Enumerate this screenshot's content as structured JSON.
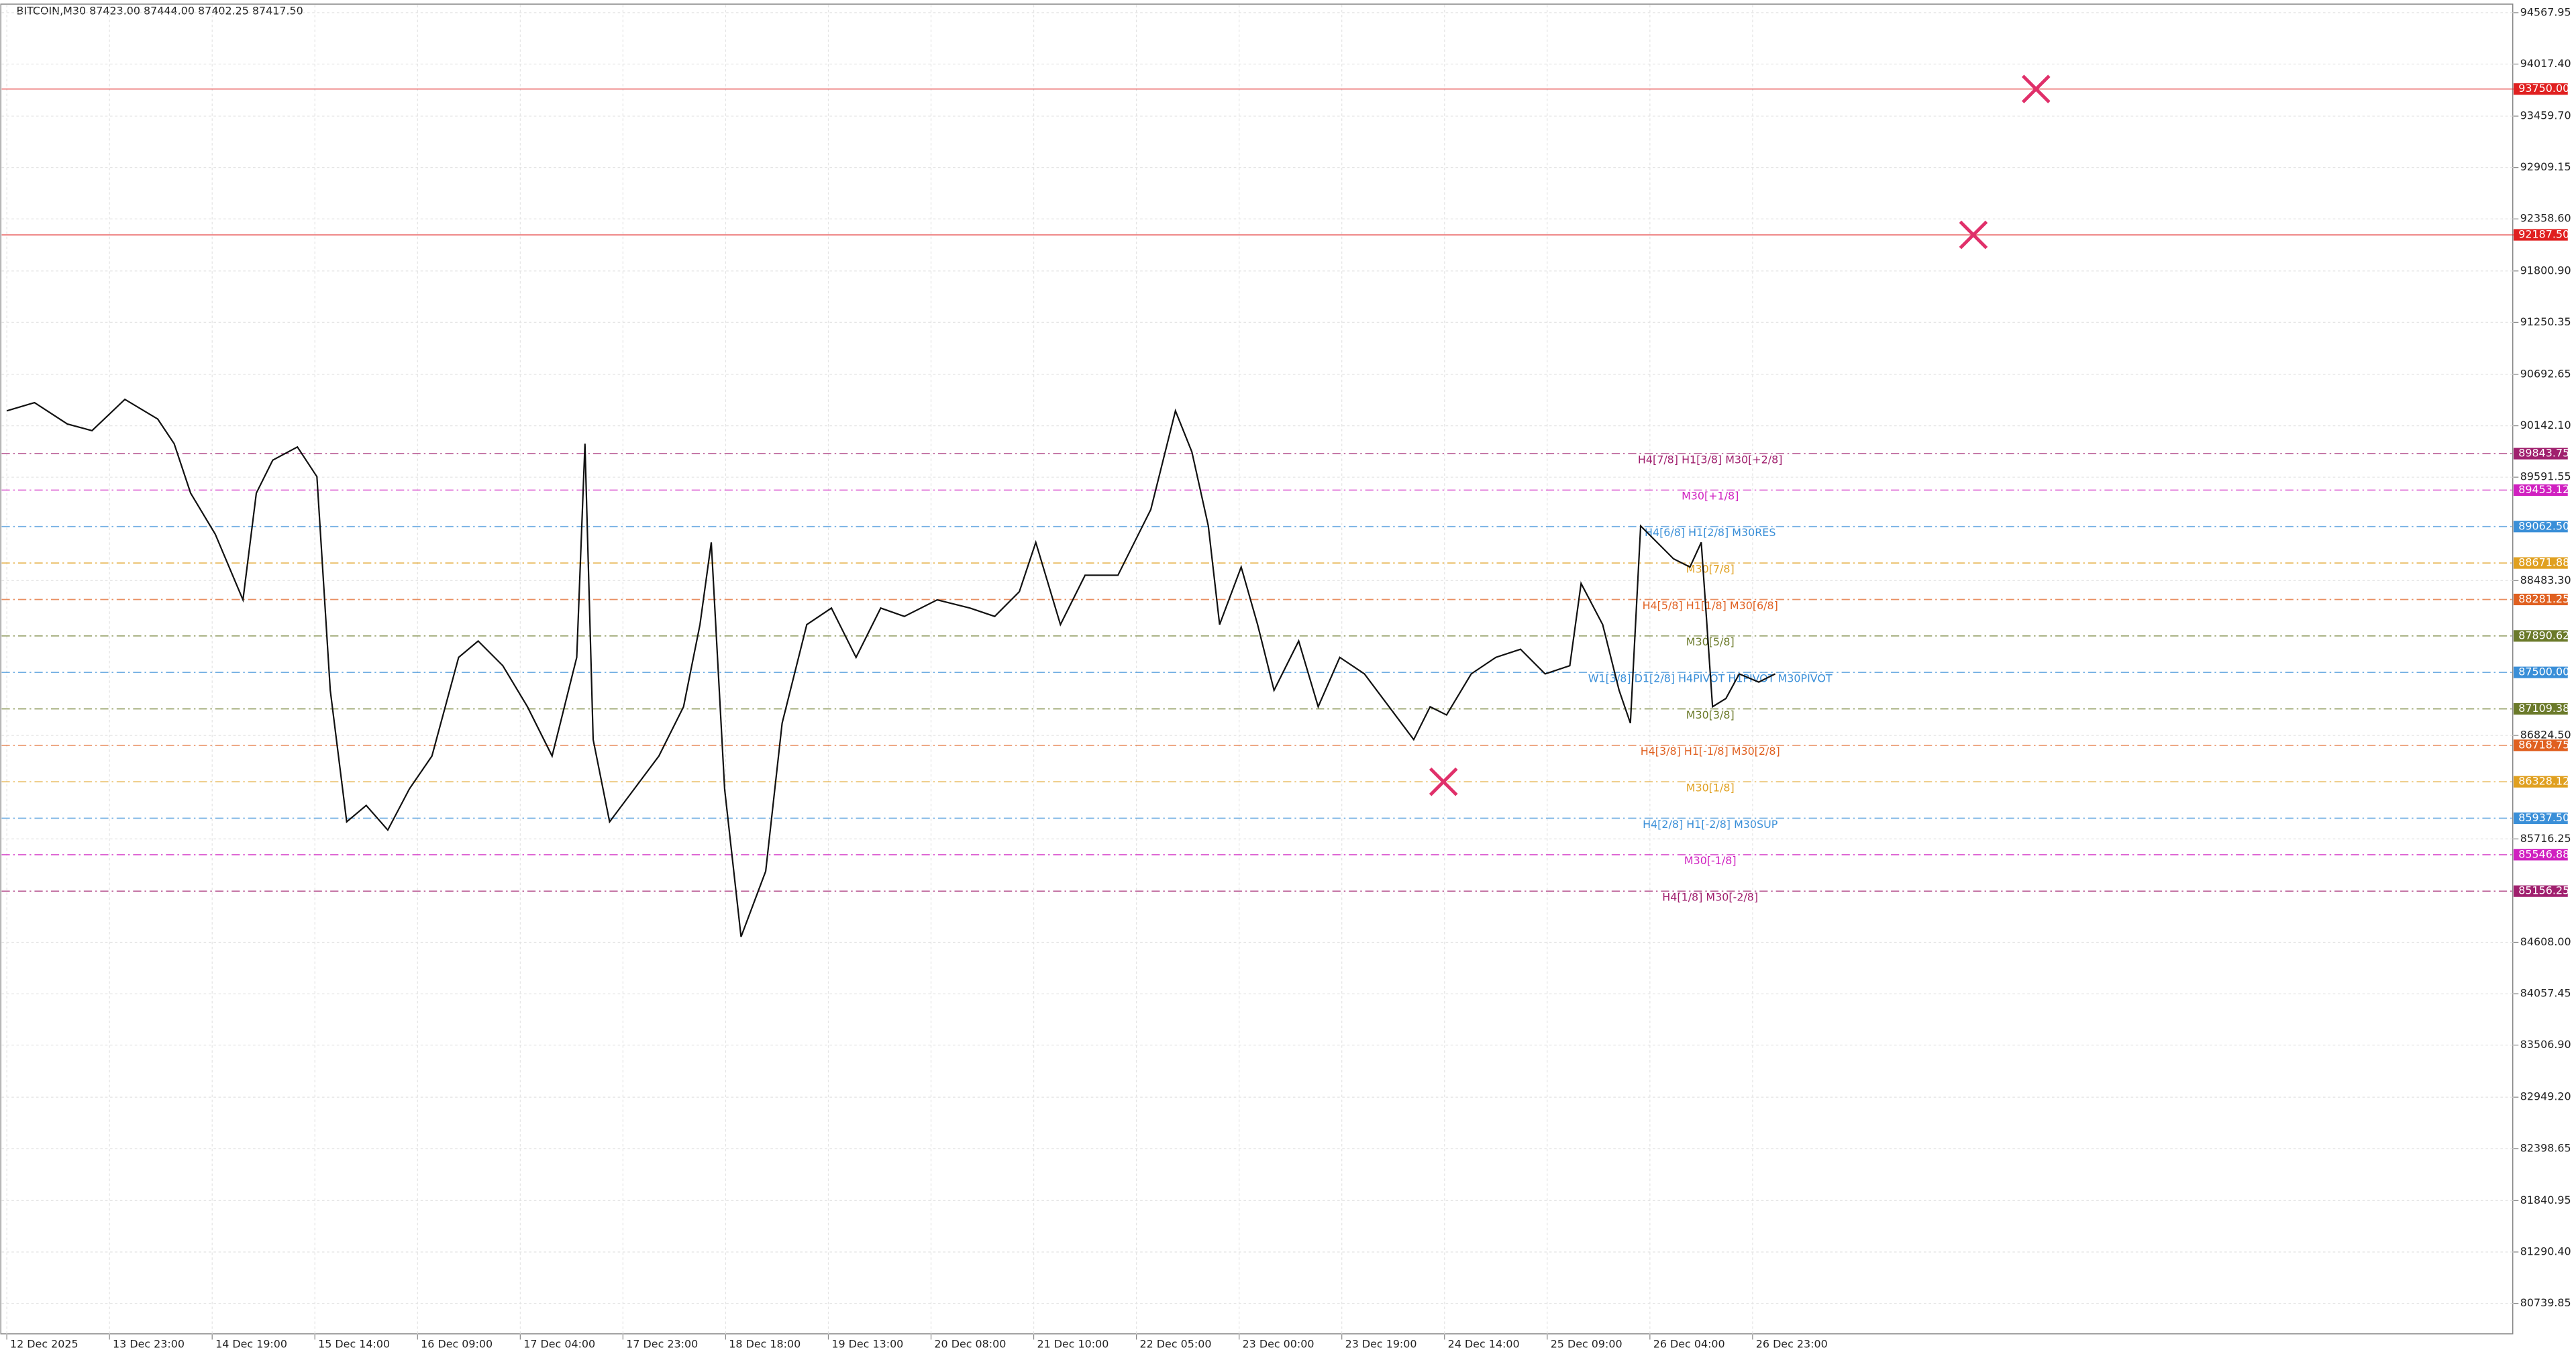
{
  "chart_data": {
    "type": "line",
    "title": "BITCOIN,M30 87423.00 87444.00 87402.25 87417.50",
    "categories": [
      "12 Dec 2025",
      "13 Dec 23:00",
      "14 Dec 19:00",
      "15 Dec 14:00",
      "16 Dec 09:00",
      "17 Dec 04:00",
      "17 Dec 23:00",
      "18 Dec 18:00",
      "19 Dec 13:00",
      "20 Dec 08:00",
      "21 Dec 10:00",
      "22 Dec 05:00",
      "23 Dec 00:00",
      "23 Dec 19:00",
      "24 Dec 14:00",
      "25 Dec 09:00",
      "26 Dec 04:00",
      "26 Dec 23:00"
    ],
    "xlim": [
      -0.05,
      24.41
    ],
    "ylim": [
      80405,
      94651
    ],
    "yticks": [
      94567.95,
      {
        "value": 94017.4,
        "label": "94017.40"
      },
      {
        "value": 93459.7,
        "label": "93459.70"
      },
      92909.15,
      {
        "value": 92358.6,
        "label": "92358.60"
      },
      {
        "value": 91800.9,
        "label": "91800.90"
      },
      91250.35,
      90692.65,
      {
        "value": 90142.1,
        "label": "90142.10"
      },
      89591.55,
      {
        "value": 88483.3,
        "label": "88483.30"
      },
      {
        "value": 86824.5,
        "label": "86824.50"
      },
      85716.25,
      {
        "value": 84608,
        "label": "84608.00"
      },
      84057.45,
      {
        "value": 83506.9,
        "label": "83506.90"
      },
      {
        "value": 82949.2,
        "label": "82949.20"
      },
      82398.65,
      81840.95,
      {
        "value": 81290.4,
        "label": "81290.40"
      },
      80739.85
    ],
    "grid": true,
    "series": [
      {
        "color": "#111111",
        "x": [
          0,
          0.27,
          0.59,
          0.83,
          1.15,
          1.47,
          1.63,
          1.79,
          2.03,
          2.3,
          2.43,
          2.59,
          2.83,
          3.02,
          3.15,
          3.31,
          3.5,
          3.71,
          3.92,
          4.14,
          4.4,
          4.59,
          4.83,
          5.07,
          5.31,
          5.55,
          5.63,
          5.71,
          5.87,
          6.11,
          6.35,
          6.59,
          6.75,
          6.86,
          6.99,
          7.15,
          7.39,
          7.55,
          7.79,
          8.03,
          8.27,
          8.51,
          8.74,
          9.06,
          9.38,
          9.62,
          9.86,
          10.02,
          10.26,
          10.5,
          10.82,
          11.14,
          11.38,
          11.54,
          11.7,
          11.81,
          12.02,
          12.18,
          12.34,
          12.58,
          12.77,
          12.98,
          13.22,
          13.46,
          13.7,
          13.86,
          14.02,
          14.26,
          14.5,
          14.74,
          14.98,
          15.22,
          15.33,
          15.54,
          15.7,
          15.81,
          15.91,
          16.07,
          16.23,
          16.39,
          16.5,
          16.61,
          16.74,
          16.87,
          17.06,
          17.22
        ],
        "values": [
          90302,
          90390,
          90161,
          90090,
          90425,
          90214,
          89950,
          89421,
          88981,
          88277,
          89421,
          89774,
          89915,
          89597,
          87308,
          85899,
          86075,
          85811,
          86251,
          86604,
          87661,
          87836,
          87572,
          87132,
          86604,
          87661,
          89950,
          86780,
          85899,
          86251,
          86604,
          87132,
          88012,
          88893,
          86251,
          84667,
          85370,
          86956,
          88012,
          88189,
          87661,
          88189,
          88100,
          88277,
          88189,
          88100,
          88365,
          88893,
          88012,
          88541,
          88541,
          89245,
          90302,
          89862,
          89069,
          88012,
          88629,
          88012,
          87308,
          87836,
          87132,
          87661,
          87484,
          87132,
          86780,
          87132,
          87044,
          87484,
          87661,
          87748,
          87484,
          87572,
          88453,
          88012,
          87308,
          86956,
          89069,
          88893,
          88717,
          88629,
          88893,
          87132,
          87220,
          87484,
          87396,
          87484
        ]
      }
    ],
    "levels": [
      {
        "value": 93750,
        "label": "93750.00",
        "color": "#e02020"
      },
      {
        "value": 92187.5,
        "label": "92187.50",
        "color": "#e02020"
      },
      {
        "value": 89843.75,
        "label": "89843.75",
        "name": "H4[7/8] H1[3/8] M30[+2/8]",
        "color": "#a0206e"
      },
      {
        "value": 89453.12,
        "label": "89453.12",
        "name": "M30[+1/8]",
        "color": "#d020c0"
      },
      {
        "value": 89062.5,
        "label": "89062.50",
        "name": "H4[6/8] H1[2/8] M30RES",
        "color": "#3a8fd8"
      },
      {
        "value": 88671.88,
        "label": "88671.88",
        "name": "M30[7/8]",
        "color": "#e0a020"
      },
      {
        "value": 88281.25,
        "label": "88281.25",
        "name": "H4[5/8] H1[1/8] M30[6/8]",
        "color": "#e06020"
      },
      {
        "value": 87890.62,
        "label": "87890.62",
        "name": "M30[5/8]",
        "color": "#6b7a2a"
      },
      {
        "value": 87500,
        "label": "87500.00",
        "name": "W1[3/8] D1[2/8] H4PIVOT H1PIVOT M30PIVOT",
        "color": "#3a8fd8"
      },
      {
        "value": 87109.38,
        "label": "87109.38",
        "name": "M30[3/8]",
        "color": "#6b7a2a"
      },
      {
        "value": 86718.75,
        "label": "86718.75",
        "name": "H4[3/8] H1[-1/8] M30[2/8]",
        "color": "#e06020"
      },
      {
        "value": 86328.12,
        "label": "86328.12",
        "name": "M30[1/8]",
        "color": "#e0a020"
      },
      {
        "value": 85937.5,
        "label": "85937.50",
        "name": "H4[2/8] H1[-2/8] M30SUP",
        "color": "#3a8fd8"
      },
      {
        "value": 85546.88,
        "label": "85546.88",
        "name": "M30[-1/8]",
        "color": "#d020c0"
      },
      {
        "value": 85156.25,
        "label": "85156.25",
        "name": "H4[1/8] M30[-2/8]",
        "color": "#a0206e"
      }
    ],
    "markers": {
      "color": "#e0306a",
      "x": [
        19.76,
        19.15,
        13.99
      ],
      "values": [
        93750,
        92187.5,
        86328.12
      ]
    }
  }
}
